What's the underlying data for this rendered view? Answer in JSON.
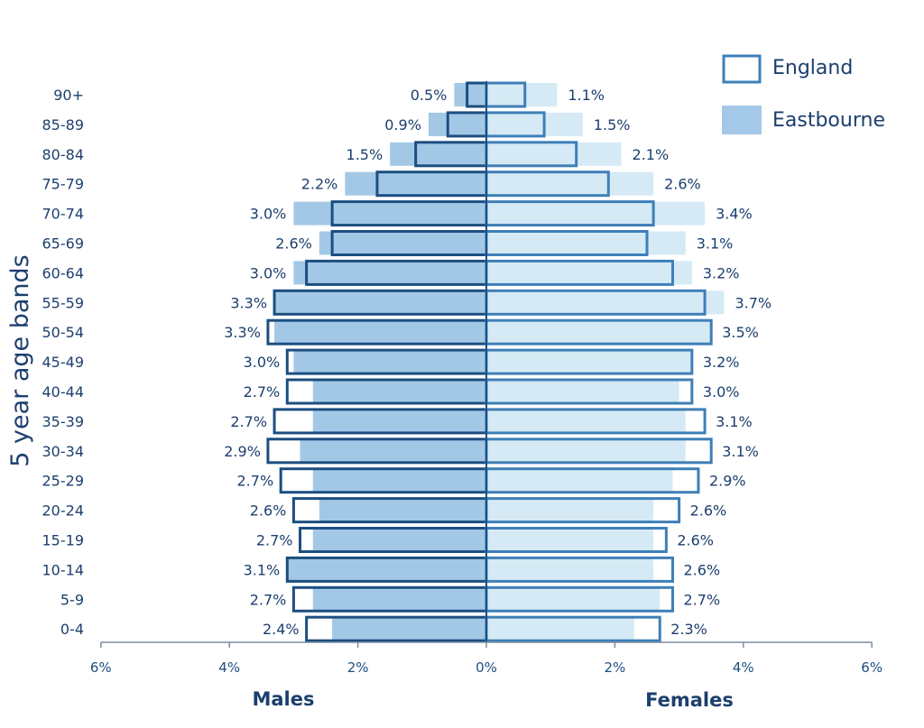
{
  "chart_data": {
    "type": "bar",
    "orientation": "horizontal-population-pyramid",
    "categories": [
      "90+",
      "85-89",
      "80-84",
      "75-79",
      "70-74",
      "65-69",
      "60-64",
      "55-59",
      "50-54",
      "45-49",
      "40-44",
      "35-39",
      "30-34",
      "25-29",
      "20-24",
      "15-19",
      "10-14",
      "5-9",
      "0-4"
    ],
    "series": [
      {
        "name": "England",
        "style": "outline",
        "males": [
          0.3,
          0.6,
          1.1,
          1.7,
          2.4,
          2.4,
          2.8,
          3.3,
          3.4,
          3.1,
          3.1,
          3.3,
          3.4,
          3.2,
          3.0,
          2.9,
          3.1,
          3.0,
          2.8
        ],
        "females": [
          0.6,
          0.9,
          1.4,
          1.9,
          2.6,
          2.5,
          2.9,
          3.4,
          3.5,
          3.2,
          3.2,
          3.4,
          3.5,
          3.3,
          3.0,
          2.8,
          2.9,
          2.9,
          2.7
        ]
      },
      {
        "name": "Eastbourne",
        "style": "filled",
        "males": [
          0.5,
          0.9,
          1.5,
          2.2,
          3.0,
          2.6,
          3.0,
          3.3,
          3.3,
          3.0,
          2.7,
          2.7,
          2.9,
          2.7,
          2.6,
          2.7,
          3.1,
          2.7,
          2.4
        ],
        "females": [
          1.1,
          1.5,
          2.1,
          2.6,
          3.4,
          3.1,
          3.2,
          3.7,
          3.5,
          3.2,
          3.0,
          3.1,
          3.1,
          2.9,
          2.6,
          2.6,
          2.6,
          2.7,
          2.3
        ]
      }
    ],
    "value_labels": {
      "males": [
        "0.5%",
        "0.9%",
        "1.5%",
        "2.2%",
        "3.0%",
        "2.6%",
        "3.0%",
        "3.3%",
        "3.3%",
        "3.0%",
        "2.7%",
        "2.7%",
        "2.9%",
        "2.7%",
        "2.6%",
        "2.7%",
        "3.1%",
        "2.7%",
        "2.4%"
      ],
      "females": [
        "1.1%",
        "1.5%",
        "2.1%",
        "2.6%",
        "3.4%",
        "3.1%",
        "3.2%",
        "3.7%",
        "3.5%",
        "3.2%",
        "3.0%",
        "3.1%",
        "3.1%",
        "2.9%",
        "2.6%",
        "2.6%",
        "2.6%",
        "2.7%",
        "2.3%"
      ]
    },
    "x_ticks": [
      "6%",
      "4%",
      "2%",
      "0%",
      "2%",
      "4%",
      "6%"
    ],
    "xlim": [
      -6,
      6
    ],
    "xlabel_left": "Males",
    "xlabel_right": "Females",
    "ylabel": "5 year age bands",
    "legend": {
      "position": "top-right",
      "items": [
        "England",
        "Eastbourne"
      ]
    },
    "grid": false,
    "colors": {
      "eastbourne_males": "#a2c8e6",
      "eastbourne_females": "#d5eaf5",
      "england_males_outline": "#1c4e80",
      "england_females_outline": "#3e7fb8",
      "legend_fill": "#a4c8e8",
      "legend_outline": "#3e7fb8",
      "text": "#1c3f6e"
    }
  }
}
